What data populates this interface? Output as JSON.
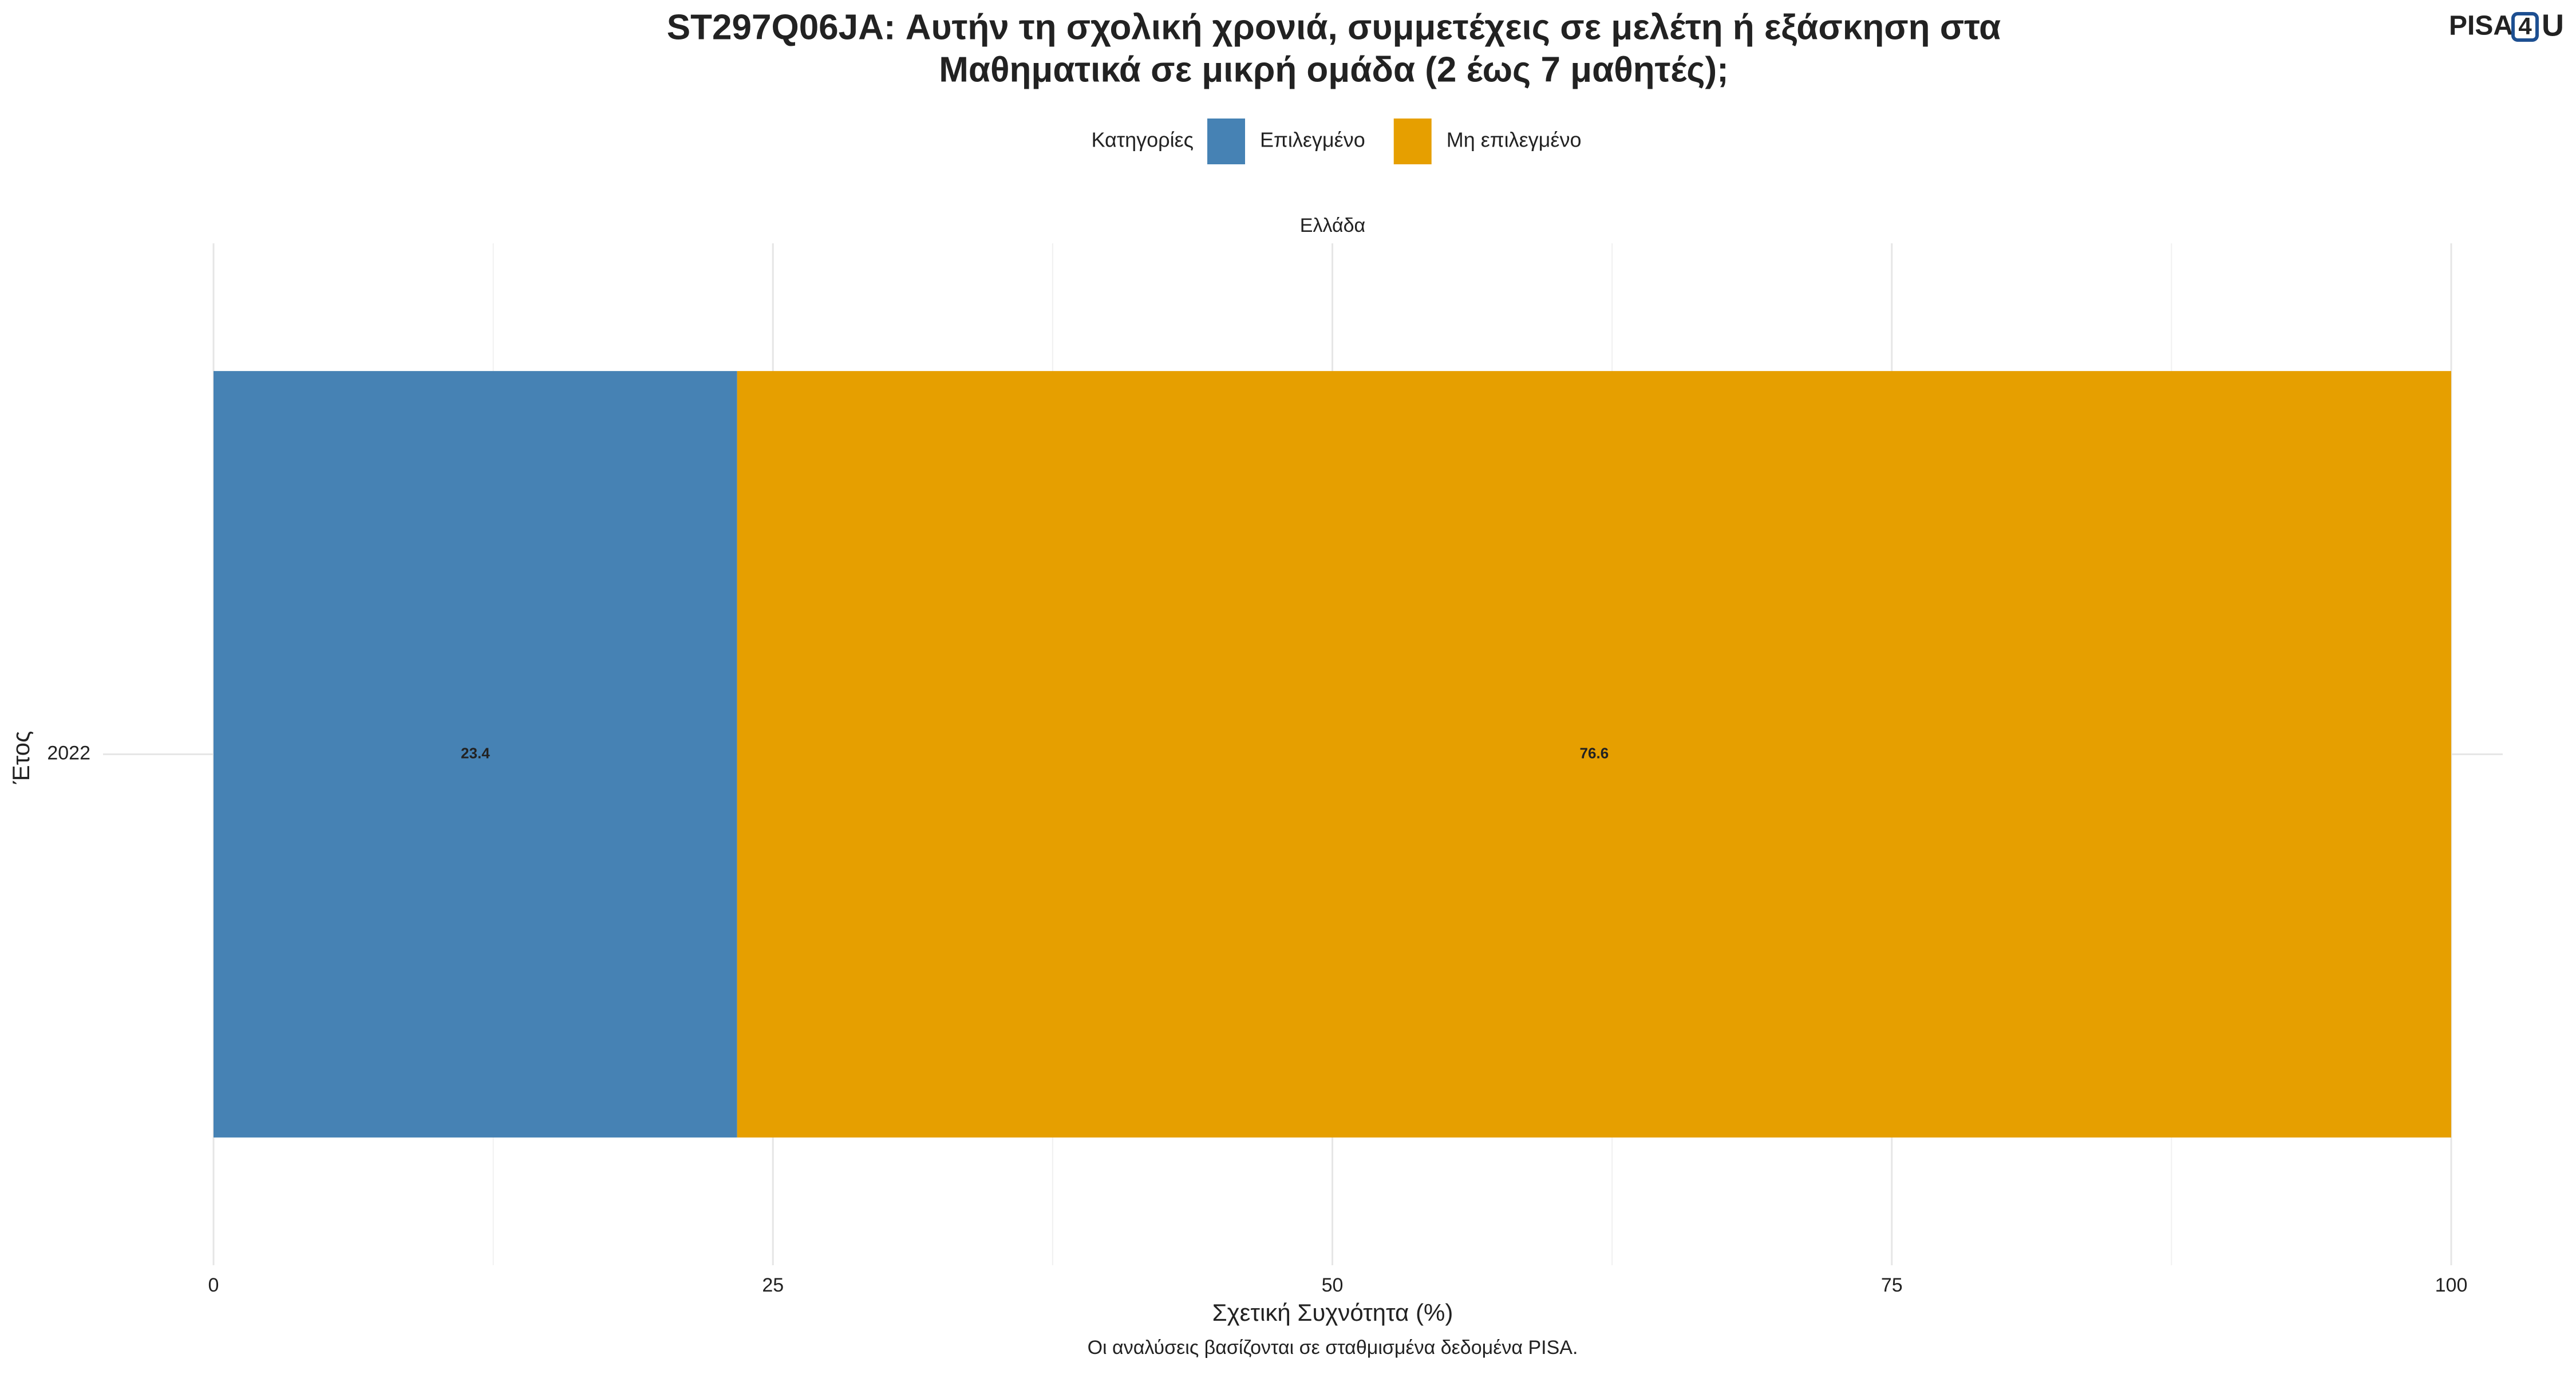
{
  "logo": {
    "part1": "PISA",
    "part2": "4",
    "part3": "U"
  },
  "chart_data": {
    "type": "bar",
    "orientation": "horizontal",
    "stacked": true,
    "title": [
      "ST297Q06JA: Αυτήν τη σχολική χρονιά, συμμετέχεις σε μελέτη ή εξάσκηση στα",
      "Μαθηματικά σε μικρή ομάδα (2 έως 7 μαθητές);"
    ],
    "legend_title": "Κατηγορίες",
    "legend_position": "top",
    "facet": "Ελλάδα",
    "categories": [
      "2022"
    ],
    "series": [
      {
        "name": "Επιλεγμένο",
        "color": "#4682b4",
        "values": [
          23.4
        ]
      },
      {
        "name": "Μη επιλεγμένο",
        "color": "#e69f00",
        "values": [
          76.6
        ]
      }
    ],
    "xlabel": "Σχετική Συχνότητα (%)",
    "ylabel": "Έτος",
    "xlim": [
      0,
      100
    ],
    "xticks": [
      0,
      25,
      50,
      75,
      100
    ],
    "grid": true,
    "caption": "Οι αναλύσεις βασίζονται σε σταθμισμένα δεδομένα PISA."
  }
}
